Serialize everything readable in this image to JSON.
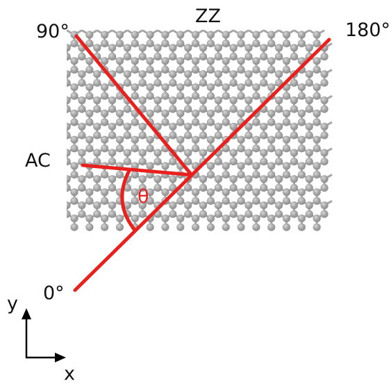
{
  "labels": {
    "zz": "ZZ",
    "ac": "AC",
    "deg_90": "90°",
    "deg_180": "180°",
    "deg_0": "0°",
    "theta": "θ",
    "axis_x": "x",
    "axis_y": "y"
  },
  "colors": {
    "line": "#e8211f",
    "atom": "#9c9c9c",
    "atom_highlight": "#cfcfcf",
    "bond": "#a6a6a6",
    "text": "#111111"
  },
  "lattice": {
    "type": "hexagonal honeycomb (graphene)",
    "atom_icon": "gray-sphere-icon"
  }
}
